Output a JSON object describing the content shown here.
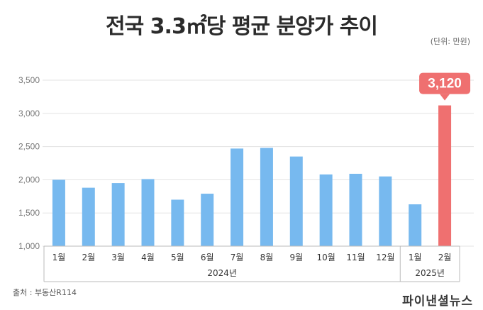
{
  "title": "전국 3.3㎡당 평균 분양가 추이",
  "unit_note": "(단위: 만원)",
  "source": "출처 : 부동산R114",
  "watermark": "파이낸셜뉴스",
  "colors": {
    "bar": "#77b9ef",
    "highlight": "#ef7070",
    "grid": "#e3e3e3",
    "axis": "#bbbbbb"
  },
  "chart_data": {
    "type": "bar",
    "categories": [
      "1월",
      "2월",
      "3월",
      "4월",
      "5월",
      "6월",
      "7월",
      "8월",
      "9월",
      "10월",
      "11월",
      "12월",
      "1월",
      "2월"
    ],
    "groups": [
      {
        "label": "2024년",
        "span": 12
      },
      {
        "label": "2025년",
        "span": 2
      }
    ],
    "series": [
      {
        "values": [
          2000,
          1880,
          1950,
          2010,
          1700,
          1790,
          2470,
          2480,
          2350,
          2080,
          2090,
          2050,
          1630,
          3120
        ]
      }
    ],
    "highlight_index": 13,
    "highlight_label": "3,120",
    "ylim": [
      1000,
      3500
    ],
    "yticks": [
      1000,
      1500,
      2000,
      2500,
      3000,
      3500
    ],
    "ytick_labels": [
      "1,000",
      "1,500",
      "2,000",
      "2,500",
      "3,000",
      "3,500"
    ],
    "grid": true
  }
}
